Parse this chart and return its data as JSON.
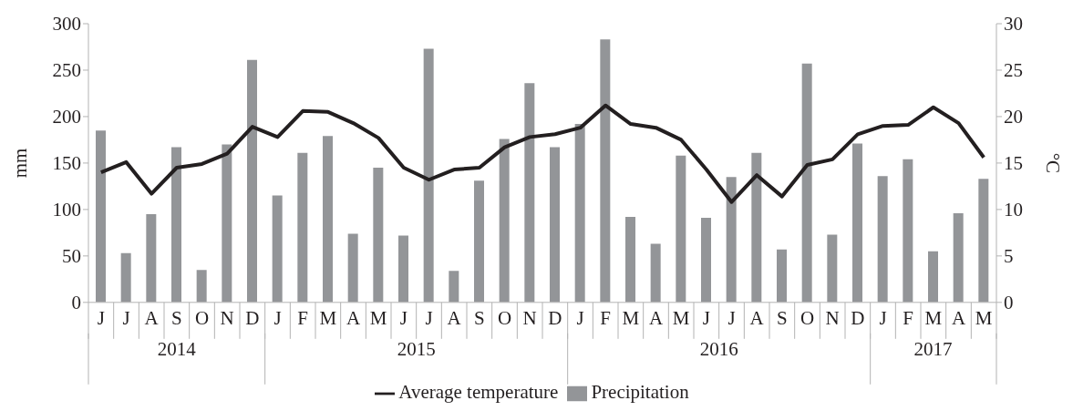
{
  "chart_data": {
    "type": "bar",
    "ylabel": "mm",
    "y2label": "°C",
    "categories": [
      "J",
      "J",
      "A",
      "S",
      "O",
      "N",
      "D",
      "J",
      "F",
      "M",
      "A",
      "M",
      "J",
      "J",
      "A",
      "S",
      "O",
      "N",
      "D",
      "J",
      "F",
      "M",
      "A",
      "M",
      "J",
      "J",
      "A",
      "S",
      "O",
      "N",
      "D",
      "J",
      "F",
      "M",
      "A",
      "M"
    ],
    "series": [
      {
        "name": "Precipitation",
        "color": "#939598",
        "values": [
          185,
          53,
          95,
          167,
          35,
          170,
          261,
          115,
          161,
          179,
          74,
          145,
          72,
          273,
          34,
          131,
          176,
          236,
          167,
          192,
          283,
          92,
          63,
          158,
          91,
          135,
          161,
          57,
          257,
          73,
          171,
          136,
          154,
          55,
          96,
          133
        ]
      },
      {
        "name": "Average temperature",
        "type": "line",
        "axis": "y2",
        "color": "#231f20",
        "values": [
          14,
          15.1,
          11.7,
          14.5,
          14.9,
          16,
          18.9,
          17.8,
          20.6,
          20.5,
          19.3,
          17.7,
          14.5,
          13.2,
          14.3,
          14.5,
          16.7,
          17.8,
          18.1,
          18.8,
          21.2,
          19.2,
          18.8,
          17.5,
          14.3,
          10.8,
          13.7,
          11.4,
          14.8,
          15.4,
          18.1,
          19,
          19.1,
          21,
          19.3,
          15.6
        ]
      }
    ],
    "ylim": [
      0,
      300
    ],
    "yticks": [
      0,
      50,
      100,
      150,
      200,
      250,
      300
    ],
    "y2lim": [
      0,
      30
    ],
    "y2ticks": [
      0,
      5,
      10,
      15,
      20,
      25,
      30
    ],
    "x2lim": [
      "2014-06-01",
      "2017-06-01"
    ],
    "x2ticks": [
      {
        "value": "2014-09-16",
        "label": "2014"
      },
      {
        "value": "2015-07-01",
        "label": "2015"
      },
      {
        "value": "2016-07-01",
        "label": "2016"
      },
      {
        "value": "2017-03-16",
        "label": "2017"
      }
    ],
    "grid": false,
    "legend": "bottom",
    "marker": "none",
    "line_style": "solid"
  }
}
